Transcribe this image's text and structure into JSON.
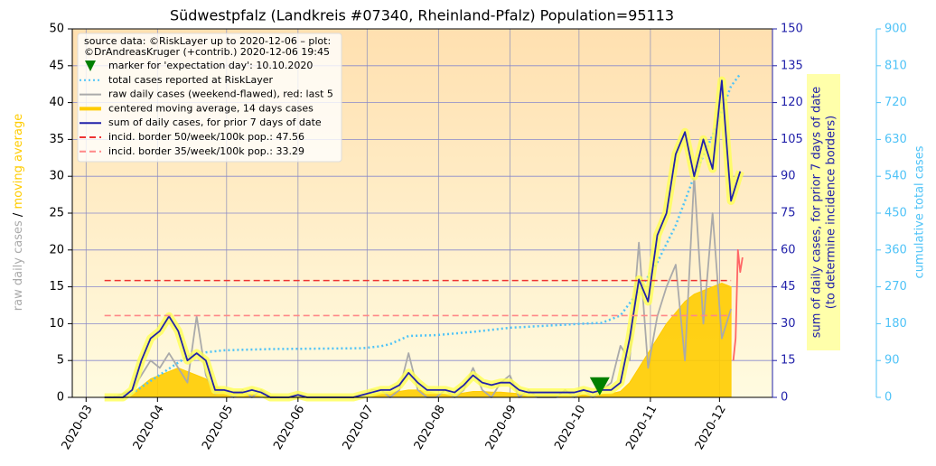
{
  "chart_data": {
    "type": "line",
    "title": "Südwestpfalz (Landkreis #07340, Rheinland-Pfalz) Population=95113",
    "ylabel_parts": [
      {
        "text": "raw daily cases",
        "color": "#aaaaaa"
      },
      {
        "text": "/",
        "color": "#000000"
      },
      {
        "text": "moving average",
        "color": "#ffcc00"
      }
    ],
    "y2label": [
      "sum of daily cases, for prior 7 days of date",
      "(to determine incidence borders)"
    ],
    "y2color": "#2222aa",
    "y3label": "cumulative total cases",
    "y3color": "#4fc3f7",
    "legend_title": [
      "source data: ©RiskLayer up to 2020-12-06 – plot:",
      "©DrAndreasKruger (+contrib.) 2020-12-06 19:45"
    ],
    "legend": "upper left",
    "grid": true,
    "xlim": [
      -6,
      298
    ],
    "xticks": [
      {
        "value": 0,
        "label": "2020-03"
      },
      {
        "value": 31,
        "label": "2020-04"
      },
      {
        "value": 61,
        "label": "2020-05"
      },
      {
        "value": 92,
        "label": "2020-06"
      },
      {
        "value": 122,
        "label": "2020-07"
      },
      {
        "value": 153,
        "label": "2020-08"
      },
      {
        "value": 184,
        "label": "2020-09"
      },
      {
        "value": 214,
        "label": "2020-10"
      },
      {
        "value": 245,
        "label": "2020-11"
      },
      {
        "value": 275,
        "label": "2020-12"
      }
    ],
    "ylim": [
      0,
      50
    ],
    "yticks": [
      0,
      5,
      10,
      15,
      20,
      25,
      30,
      35,
      40,
      45,
      50
    ],
    "y2lim": [
      0,
      150
    ],
    "y2ticks": [
      0,
      15,
      30,
      45,
      60,
      75,
      90,
      105,
      120,
      135,
      150
    ],
    "y3lim": [
      0,
      900
    ],
    "y3ticks": [
      0,
      90,
      180,
      270,
      360,
      450,
      540,
      630,
      720,
      810,
      900
    ],
    "x": [
      8,
      12,
      16,
      20,
      24,
      28,
      32,
      36,
      40,
      44,
      48,
      52,
      56,
      60,
      64,
      68,
      72,
      76,
      80,
      84,
      88,
      92,
      96,
      100,
      104,
      108,
      112,
      116,
      120,
      124,
      128,
      132,
      136,
      140,
      144,
      148,
      152,
      156,
      160,
      164,
      168,
      172,
      176,
      180,
      184,
      188,
      192,
      196,
      200,
      204,
      208,
      212,
      216,
      220,
      224,
      228,
      232,
      236,
      240,
      244,
      248,
      252,
      256,
      260,
      264,
      268,
      272,
      276,
      280,
      284
    ],
    "series": [
      {
        "name": "marker for 'expectation day': 10.10.2020",
        "kind": "marker",
        "color": "#008000",
        "x": [
          223
        ],
        "values": [
          1.5
        ]
      },
      {
        "name": "total cases reported at RiskLayer",
        "kind": "line",
        "dash": "dotted",
        "color": "#4fc3f7",
        "axis": "y3",
        "x": [
          10,
          20,
          28,
          36,
          44,
          52,
          60,
          80,
          100,
          120,
          128,
          132,
          140,
          152,
          168,
          184,
          200,
          216,
          224,
          232,
          240,
          248,
          256,
          264,
          272,
          280,
          284
        ],
        "values": [
          0,
          10,
          40,
          70,
          100,
          110,
          115,
          118,
          119,
          120,
          125,
          130,
          150,
          152,
          160,
          170,
          175,
          180,
          182,
          200,
          260,
          330,
          420,
          540,
          640,
          760,
          790
        ]
      },
      {
        "name": "raw daily cases (weekend-flawed), red: last 5",
        "kind": "line",
        "color": "#aaaaaa",
        "values": [
          0,
          0,
          0.5,
          1,
          3,
          5,
          4,
          6,
          4,
          2,
          11,
          3,
          0.5,
          1,
          0,
          1,
          0,
          1,
          0,
          0,
          0,
          0,
          0,
          0,
          0,
          0,
          0,
          0,
          0,
          1,
          1,
          0,
          1,
          6,
          1,
          0,
          0,
          1,
          0,
          1,
          4,
          1,
          0,
          2,
          3,
          0,
          1,
          0,
          0,
          0,
          1,
          0,
          1,
          0,
          1,
          2,
          7,
          5,
          21,
          4,
          11,
          15,
          18,
          5,
          30,
          10,
          25,
          8,
          12,
          null
        ]
      },
      {
        "kind": "line",
        "color": "#ff6666",
        "x": [
          281,
          282,
          283,
          284,
          285
        ],
        "values": [
          5,
          8,
          20,
          17,
          19
        ]
      },
      {
        "name": "centered moving average, 14 days cases",
        "kind": "area",
        "color": "#ffcc00",
        "values": [
          0,
          0,
          0,
          0.5,
          1.5,
          2.5,
          3,
          3.5,
          4,
          3.5,
          3,
          2.5,
          1.5,
          1,
          0.5,
          0.5,
          0.4,
          0.3,
          0.2,
          0.1,
          0,
          0,
          0,
          0,
          0,
          0,
          0,
          0,
          0.2,
          0.4,
          0.6,
          0.7,
          0.8,
          1,
          1,
          0.8,
          0.5,
          0.4,
          0.4,
          0.6,
          0.8,
          0.8,
          0.7,
          0.7,
          0.6,
          0.5,
          0.3,
          0.3,
          0.3,
          0.3,
          0.3,
          0.3,
          0.3,
          0.3,
          0.4,
          0.5,
          0.8,
          2,
          4,
          6,
          8,
          10,
          11.5,
          13,
          14,
          14.5,
          15,
          15.5,
          15,
          null
        ]
      },
      {
        "name": "sum of daily cases, for prior 7 days of date",
        "kind": "line",
        "color": "#2222aa",
        "glow": "#ffff55",
        "axis": "y2",
        "values": [
          0,
          0,
          0,
          3,
          15,
          24,
          27,
          33,
          27,
          15,
          18,
          15,
          3,
          3,
          2,
          2,
          3,
          2,
          0,
          0,
          0,
          1,
          0,
          0,
          0,
          0,
          0,
          0,
          1,
          2,
          3,
          3,
          5,
          10,
          6,
          3,
          3,
          3,
          2,
          5,
          9,
          6,
          5,
          6,
          6,
          3,
          2,
          2,
          2,
          2,
          2,
          2,
          3,
          2,
          3,
          3,
          6,
          24,
          48,
          39,
          66,
          75,
          99,
          108,
          90,
          105,
          93,
          129,
          80,
          92
        ]
      },
      {
        "name": "incid. border 50/week/100k pop.: 47.56",
        "kind": "hline",
        "dash": "dashed",
        "color": "#ee3333",
        "axis": "y2",
        "x": [
          8,
          280
        ],
        "value": 47.56
      },
      {
        "name": "incid. border 35/week/100k pop.: 33.29",
        "kind": "hline",
        "dash": "dashed",
        "color": "#ff8888",
        "axis": "y2",
        "x": [
          8,
          280
        ],
        "value": 33.29
      }
    ]
  }
}
